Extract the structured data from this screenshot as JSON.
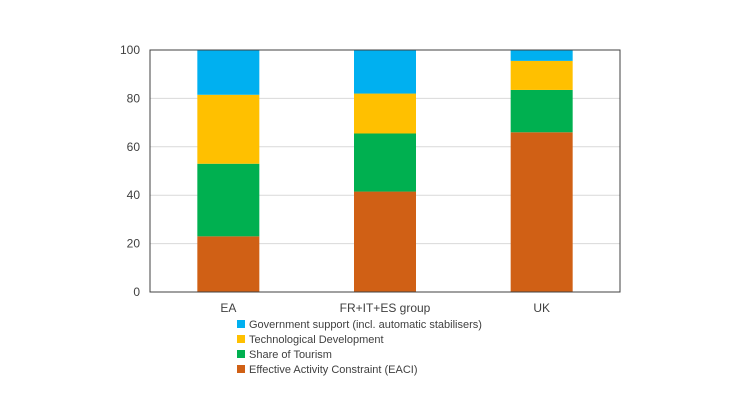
{
  "chart_data": {
    "type": "bar",
    "stacked": true,
    "title": "",
    "xlabel": "",
    "ylabel": "",
    "ylim": [
      0,
      100
    ],
    "yticks": [
      0,
      20,
      40,
      60,
      80,
      100
    ],
    "grid": true,
    "legend_position": "bottom",
    "categories": [
      "EA",
      "FR+IT+ES group",
      "UK"
    ],
    "series": [
      {
        "name": "Effective Activity Constraint (EACI)",
        "color": "#D06015",
        "values": [
          23,
          41.5,
          66
        ]
      },
      {
        "name": "Share of Tourism",
        "color": "#00B050",
        "values": [
          30,
          24,
          17.5
        ]
      },
      {
        "name": "Technological Development",
        "color": "#FFC000",
        "values": [
          28.5,
          16.5,
          12
        ]
      },
      {
        "name": "Government support (incl. automatic stabilisers)",
        "color": "#00B0F0",
        "values": [
          18.5,
          18,
          4.5
        ]
      }
    ],
    "legend_order": [
      "Government support (incl. automatic stabilisers)",
      "Technological Development",
      "Share of Tourism",
      "Effective Activity Constraint (EACI)"
    ]
  }
}
